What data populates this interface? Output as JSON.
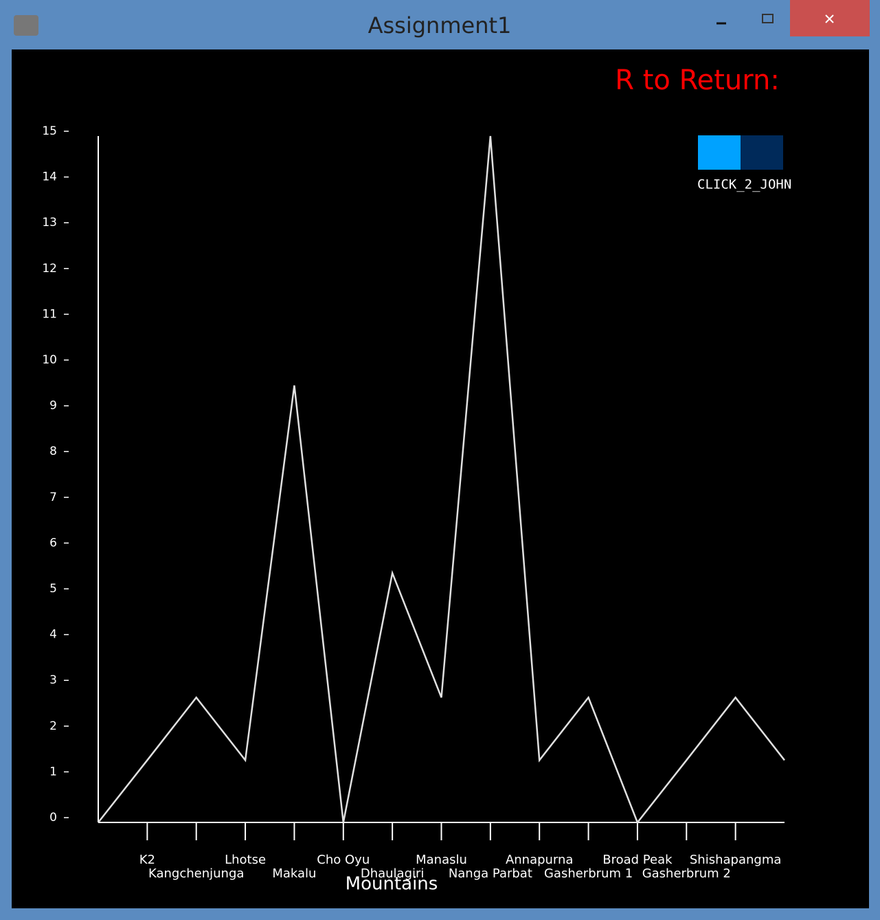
{
  "window": {
    "title": "Assignment1"
  },
  "hint": {
    "text": "R to Return:",
    "color": "#ff0000"
  },
  "button": {
    "label": "CLICK_2_JOHN",
    "colors": [
      "#00a2ff",
      "#002a5a"
    ]
  },
  "chart_data": {
    "type": "line",
    "x_label": "Mountains",
    "categories": [
      null,
      "K2",
      "Kangchenjunga",
      "Lhotse",
      "Makalu",
      "Cho Oyu",
      "Dhaulagiri",
      "Manaslu",
      "Nanga Parbat",
      "Annapurna",
      "Gasherbrum 1",
      "Broad Peak",
      "Gasherbrum 2",
      "Shishapangma",
      null
    ],
    "series": [
      {
        "color": "#e0e0e0",
        "values": [
          0,
          1.36,
          2.73,
          1.36,
          9.55,
          0,
          5.45,
          2.73,
          15,
          1.36,
          2.73,
          0,
          1.36,
          2.73,
          1.36
        ]
      }
    ],
    "ylim": [
      0,
      15
    ],
    "yticks": [
      0,
      1,
      2,
      3,
      4,
      5,
      6,
      7,
      8,
      9,
      10,
      11,
      12,
      13,
      14,
      15
    ]
  }
}
